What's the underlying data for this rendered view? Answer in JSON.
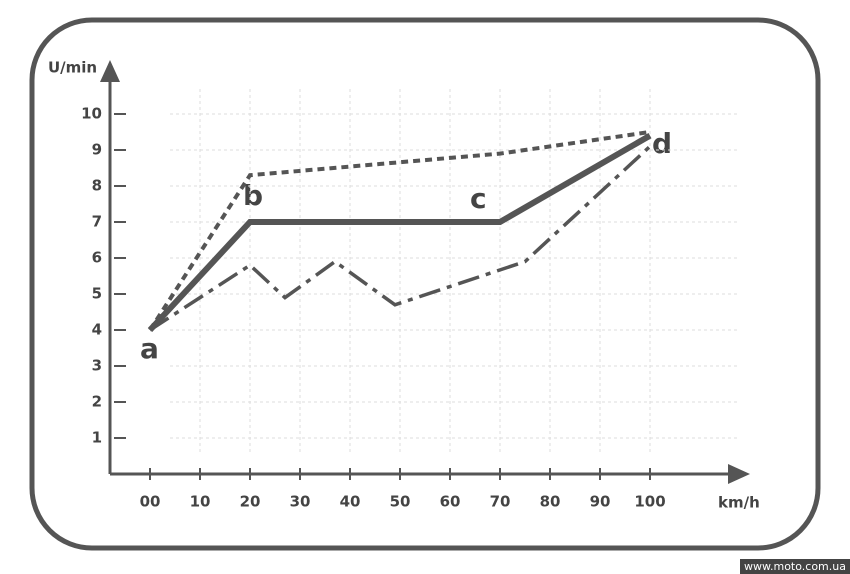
{
  "chart_data": {
    "type": "line",
    "x_label": "km/h",
    "y_label": "U/min",
    "xlim": [
      -8,
      120
    ],
    "ylim": [
      0,
      11
    ],
    "xticks": [
      {
        "value": 0,
        "label": "00"
      },
      10,
      20,
      30,
      40,
      50,
      60,
      70,
      80,
      90,
      100
    ],
    "yticks": [
      1,
      2,
      3,
      4,
      5,
      6,
      7,
      8,
      9,
      10
    ],
    "grid": true,
    "point_labels": [
      "a",
      "b",
      "c",
      "d"
    ],
    "series": [
      {
        "color": "#555555",
        "style": "solid",
        "x": [
          0,
          20,
          70,
          100
        ],
        "values": [
          4,
          7,
          7,
          9.4
        ]
      },
      {
        "color": "#555555",
        "style": "dotted",
        "x": [
          0,
          20,
          70,
          100
        ],
        "values": [
          4,
          8.3,
          8.9,
          9.5
        ]
      },
      {
        "color": "#555555",
        "style": "dashdot",
        "x": [
          0,
          20,
          27,
          37,
          49,
          75,
          100
        ],
        "values": [
          4,
          5.8,
          4.9,
          5.9,
          4.7,
          5.9,
          9.1
        ]
      }
    ]
  },
  "watermark": "www.moto.com.ua"
}
